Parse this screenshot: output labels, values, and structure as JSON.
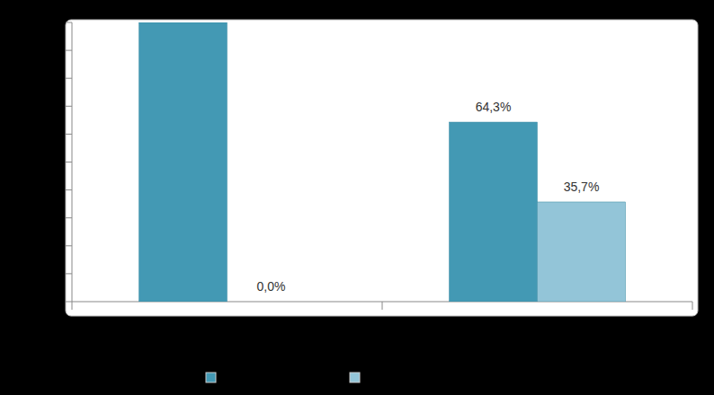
{
  "chart_data": {
    "type": "bar",
    "categories": [
      null,
      null
    ],
    "series": [
      {
        "color": "#4399b4",
        "values": [
          100,
          64.3
        ],
        "value_labels": [
          null,
          "64,3%"
        ]
      },
      {
        "color": "#93c5d8",
        "values": [
          0,
          35.7
        ],
        "value_labels": [
          "0,0%",
          "35,7%"
        ]
      }
    ],
    "ylim": [
      0,
      100
    ],
    "yticks": [
      0,
      10,
      20,
      30,
      40,
      50,
      60,
      70,
      80,
      90,
      100
    ],
    "grid": false,
    "data_labels": true,
    "tick_labels": false,
    "legend": "bottom"
  }
}
